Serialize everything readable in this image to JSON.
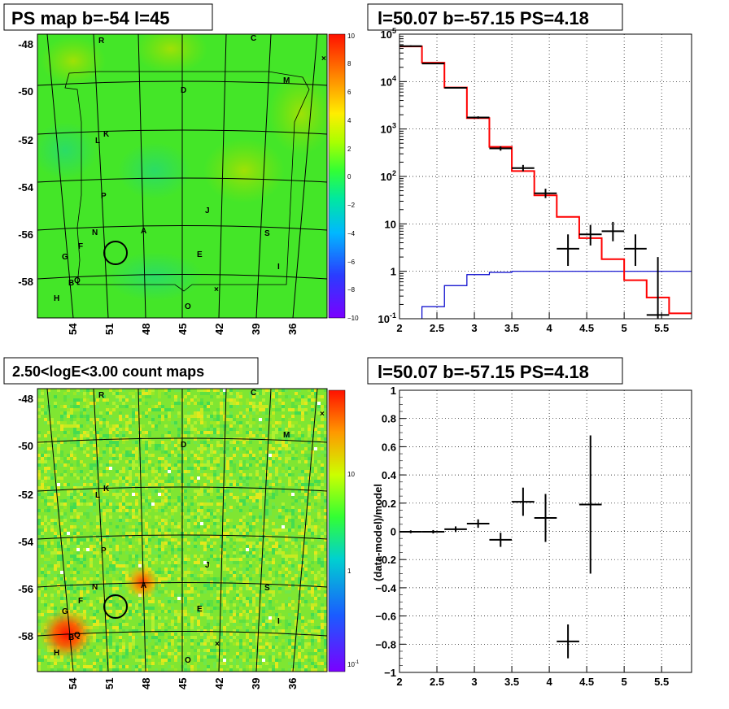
{
  "titles": {
    "ps_map": "PS map b=-54 l=45",
    "spectrum": "l=50.07 b=-57.15 PS=4.18",
    "count_map": "2.50<logE<3.00 count maps",
    "residual": "l=50.07 b=-57.15 PS=4.18"
  },
  "colors": {
    "model_line": "#ff0000",
    "background_line": "#0000cc",
    "data_points": "#000000",
    "map_green": "#44e628",
    "map_low": "#7a00ff",
    "map_high": "#ff0000"
  },
  "chart_data": [
    {
      "type": "heatmap",
      "name": "ps-map",
      "title": "PS map b=-54 l=45",
      "x_ticks": [
        "54",
        "51",
        "48",
        "45",
        "42",
        "39",
        "36"
      ],
      "y_ticks": [
        "-48",
        "-50",
        "-52",
        "-54",
        "-56",
        "-58"
      ],
      "colorbar_ticks": [
        "10",
        "8",
        "6",
        "4",
        "2",
        "0",
        "−2",
        "−4",
        "−6",
        "−8",
        "−10"
      ],
      "colorbar_range": [
        -10,
        10
      ],
      "sources": [
        "R",
        "C",
        "M",
        "D",
        "K",
        "L",
        "P",
        "J",
        "N",
        "A",
        "S",
        "F",
        "G",
        "E",
        "I",
        "B",
        "Q",
        "H",
        "O"
      ],
      "marked_position": {
        "l": 50.07,
        "b": -57.15
      }
    },
    {
      "type": "line",
      "name": "spectrum",
      "title": "l=50.07 b=-57.15 PS=4.18",
      "x_ticks": [
        "2",
        "2.5",
        "3",
        "3.5",
        "4",
        "4.5",
        "5",
        "5.5"
      ],
      "xlim": [
        2,
        5.9
      ],
      "y_scale": "log",
      "y_ticks": [
        "10^-1",
        "1",
        "10",
        "10^2",
        "10^3",
        "10^4",
        "10^5"
      ],
      "ylim": [
        0.1,
        100000
      ],
      "model_steps": {
        "edges": [
          2.0,
          2.3,
          2.6,
          2.9,
          3.2,
          3.5,
          3.8,
          4.1,
          4.4,
          4.7,
          5.0,
          5.3,
          5.6,
          5.9
        ],
        "values": [
          55000,
          25000,
          7500,
          1700,
          420,
          130,
          40,
          14,
          5,
          1.8,
          0.65,
          0.28,
          0.13
        ]
      },
      "background_steps": {
        "edges": [
          2.0,
          2.3,
          2.6,
          2.9,
          3.2,
          3.5,
          3.8,
          4.1,
          4.4,
          4.7,
          5.0,
          5.3,
          5.6,
          5.9
        ],
        "values": [
          0.05,
          0.18,
          0.5,
          0.85,
          0.95,
          1.0,
          1.0,
          1.0,
          1.0,
          1.0,
          1.0,
          1.0,
          1.0
        ]
      },
      "data_points": [
        {
          "x": 2.15,
          "y": 56000,
          "xerr": 0.15,
          "ylo": 54000,
          "yhi": 58000
        },
        {
          "x": 2.45,
          "y": 24000,
          "xerr": 0.15,
          "ylo": 23500,
          "yhi": 24500
        },
        {
          "x": 2.75,
          "y": 7400,
          "xerr": 0.15,
          "ylo": 7200,
          "yhi": 7600
        },
        {
          "x": 3.05,
          "y": 1750,
          "xerr": 0.15,
          "ylo": 1650,
          "yhi": 1850
        },
        {
          "x": 3.35,
          "y": 390,
          "xerr": 0.15,
          "ylo": 350,
          "yhi": 430
        },
        {
          "x": 3.65,
          "y": 150,
          "xerr": 0.15,
          "ylo": 128,
          "yhi": 175
        },
        {
          "x": 3.95,
          "y": 44,
          "xerr": 0.15,
          "ylo": 35,
          "yhi": 55
        },
        {
          "x": 4.25,
          "y": 3,
          "xerr": 0.15,
          "ylo": 1.3,
          "yhi": 6
        },
        {
          "x": 4.55,
          "y": 6,
          "xerr": 0.15,
          "ylo": 3.5,
          "yhi": 9.5
        },
        {
          "x": 4.85,
          "y": 7,
          "xerr": 0.15,
          "ylo": 4.3,
          "yhi": 11
        },
        {
          "x": 5.15,
          "y": 3,
          "xerr": 0.15,
          "ylo": 1.3,
          "yhi": 6
        },
        {
          "x": 5.45,
          "y": 0.12,
          "xerr": 0.15,
          "ylo": 0.1,
          "yhi": 2
        }
      ]
    },
    {
      "type": "heatmap",
      "name": "count-map",
      "title": "2.50<logE<3.00 count maps",
      "x_ticks": [
        "54",
        "51",
        "48",
        "45",
        "42",
        "39",
        "36"
      ],
      "y_ticks": [
        "-48",
        "-50",
        "-52",
        "-54",
        "-56",
        "-58"
      ],
      "colorbar_ticks": [
        "10",
        "1",
        "10^-1"
      ],
      "colorbar_scale": "log",
      "sources": [
        "R",
        "C",
        "M",
        "D",
        "K",
        "L",
        "P",
        "J",
        "N",
        "A",
        "S",
        "F",
        "G",
        "E",
        "I",
        "B",
        "Q",
        "H",
        "O"
      ],
      "marked_position": {
        "l": 50.07,
        "b": -57.15
      }
    },
    {
      "type": "scatter",
      "name": "residual",
      "title": "l=50.07 b=-57.15 PS=4.18",
      "ylabel": "(data-model)/model",
      "x_ticks": [
        "2",
        "2.5",
        "3",
        "3.5",
        "4",
        "4.5",
        "5",
        "5.5"
      ],
      "xlim": [
        2,
        5.9
      ],
      "y_ticks": [
        "1",
        "0.8",
        "0.6",
        "0.4",
        "0.2",
        "0",
        "−0.2",
        "−0.4",
        "−0.6",
        "−0.8",
        "−1"
      ],
      "ylim": [
        -1,
        1
      ],
      "grid": true,
      "points": [
        {
          "x": 2.15,
          "y": -0.003,
          "xerr": 0.15,
          "yerr": 0.01
        },
        {
          "x": 2.45,
          "y": -0.003,
          "xerr": 0.15,
          "yerr": 0.012
        },
        {
          "x": 2.75,
          "y": 0.015,
          "xerr": 0.15,
          "yerr": 0.02
        },
        {
          "x": 3.05,
          "y": 0.055,
          "xerr": 0.15,
          "yerr": 0.03
        },
        {
          "x": 3.35,
          "y": -0.06,
          "xerr": 0.15,
          "yerr": 0.05
        },
        {
          "x": 3.65,
          "y": 0.21,
          "xerr": 0.15,
          "yerr": 0.1
        },
        {
          "x": 3.95,
          "y": 0.095,
          "xerr": 0.15,
          "yerr": 0.17
        },
        {
          "x": 4.25,
          "y": -0.78,
          "xerr": 0.15,
          "yerr": 0.12
        },
        {
          "x": 4.55,
          "y": 0.19,
          "xerr": 0.15,
          "yerr": 0.49
        }
      ]
    }
  ]
}
